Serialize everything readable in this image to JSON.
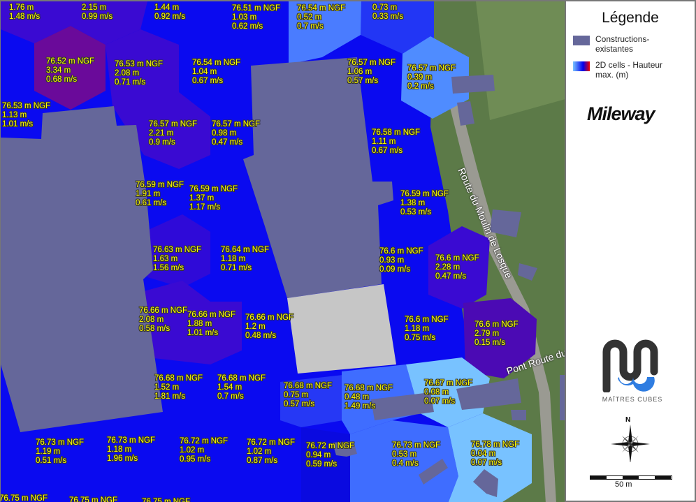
{
  "map": {
    "cells": [
      {
        "wse": null,
        "depth": "1.76 m",
        "velocity": "1.48 m/s"
      },
      {
        "wse": null,
        "depth": "2.15 m",
        "velocity": "0.99 m/s"
      },
      {
        "wse": null,
        "depth": "1.44 m",
        "velocity": "0.92 m/s"
      },
      {
        "wse": "76.51 m NGF",
        "depth": "1.03 m",
        "velocity": "0.62 m/s"
      },
      {
        "wse": "76.54 m NGF",
        "depth": "0.52 m",
        "velocity": "0.7 m/s"
      },
      {
        "wse": null,
        "depth": "0.73 m",
        "velocity": "0.33 m/s"
      },
      {
        "wse": "76.52 m NGF",
        "depth": "3.34 m",
        "velocity": "0.68 m/s"
      },
      {
        "wse": "76.53 m NGF",
        "depth": "2.08 m",
        "velocity": "0.71 m/s"
      },
      {
        "wse": "76.54 m NGF",
        "depth": "1.04 m",
        "velocity": "0.67 m/s"
      },
      {
        "wse": "76.57 m NGF",
        "depth": "1.06 m",
        "velocity": "0.57 m/s"
      },
      {
        "wse": "76.57 m NGF",
        "depth": "0.39 m",
        "velocity": "0.2 m/s"
      },
      {
        "wse": "76.53 m NGF",
        "depth": "1.13 m",
        "velocity": "1.01 m/s"
      },
      {
        "wse": "76.57 m NGF",
        "depth": "2.21 m",
        "velocity": "0.9 m/s"
      },
      {
        "wse": "76.57 m NGF",
        "depth": "0.98 m",
        "velocity": "0.47 m/s"
      },
      {
        "wse": "76.58 m NGF",
        "depth": "1.11 m",
        "velocity": "0.67 m/s"
      },
      {
        "wse": "76.59 m NGF",
        "depth": "1.91 m",
        "velocity": "0.61 m/s"
      },
      {
        "wse": "76.59 m NGF",
        "depth": "1.37 m",
        "velocity": "1.17 m/s"
      },
      {
        "wse": "76.59 m NGF",
        "depth": "1.38 m",
        "velocity": "0.53 m/s"
      },
      {
        "wse": "76.63 m NGF",
        "depth": "1.63 m",
        "velocity": "1.56 m/s"
      },
      {
        "wse": "76.64 m NGF",
        "depth": "1.18 m",
        "velocity": "0.71 m/s"
      },
      {
        "wse": "76.6 m NGF",
        "depth": "0.93 m",
        "velocity": "0.09 m/s"
      },
      {
        "wse": "76.6 m NGF",
        "depth": "2.28 m",
        "velocity": "0.47 m/s"
      },
      {
        "wse": "76.66 m NGF",
        "depth": "2.08 m",
        "velocity": "0.58 m/s"
      },
      {
        "wse": "76.66 m NGF",
        "depth": "1.88 m",
        "velocity": "1.01 m/s"
      },
      {
        "wse": "76.66 m NGF",
        "depth": "1.2 m",
        "velocity": "0.48 m/s"
      },
      {
        "wse": "76.6 m NGF",
        "depth": "1.18 m",
        "velocity": "0.75 m/s"
      },
      {
        "wse": "76.6 m NGF",
        "depth": "2.79 m",
        "velocity": "0.15 m/s"
      },
      {
        "wse": "76.68 m NGF",
        "depth": "1.52 m",
        "velocity": "1.81 m/s"
      },
      {
        "wse": "76.68 m NGF",
        "depth": "1.54 m",
        "velocity": "0.7 m/s"
      },
      {
        "wse": "76.68 m NGF",
        "depth": "0.75 m",
        "velocity": "0.57 m/s"
      },
      {
        "wse": "76.68 m NGF",
        "depth": "0.48 m",
        "velocity": "1.49 m/s"
      },
      {
        "wse": "76.67 m NGF",
        "depth": "0.08 m",
        "velocity": "0.07 m/s"
      },
      {
        "wse": "76.73 m NGF",
        "depth": "1.19 m",
        "velocity": "0.51 m/s"
      },
      {
        "wse": "76.73 m NGF",
        "depth": "1.18 m",
        "velocity": "1.96 m/s"
      },
      {
        "wse": "76.72 m NGF",
        "depth": "1.02 m",
        "velocity": "0.95 m/s"
      },
      {
        "wse": "76.72 m NGF",
        "depth": "1.02 m",
        "velocity": "0.87 m/s"
      },
      {
        "wse": "76.72 m NGF",
        "depth": "0.94 m",
        "velocity": "0.59 m/s"
      },
      {
        "wse": "76.73 m NGF",
        "depth": "0.53 m",
        "velocity": "0.4 m/s"
      },
      {
        "wse": "76.78 m NGF",
        "depth": "0.04 m",
        "velocity": "0.07 m/s"
      },
      {
        "wse": "76.75 m NGF",
        "depth": null,
        "velocity": null
      },
      {
        "wse": "76.75 m NGF",
        "depth": null,
        "velocity": null
      },
      {
        "wse": "76.75 m NGF",
        "depth": null,
        "velocity": null
      }
    ],
    "roads": {
      "main": "Route du Moulin de Losque",
      "bottom": "Pont  Route du"
    },
    "colors": {
      "deep_purple": "#6a0a9a",
      "violet": "#3a0ad2",
      "blue": "#0a0af0",
      "mid_blue": "#3f6dff",
      "light_blue": "#78c2ff",
      "building": "#65679a",
      "building_light": "#c6c6c6"
    }
  },
  "legend": {
    "title": "Légende",
    "items": [
      {
        "label": "Constructions-existantes",
        "swatch": "#65679a"
      },
      {
        "label": "2D cells - Hauteur max. (m)",
        "gradient": [
          "#7ac4ff",
          "#0000ee",
          "#ee0000"
        ]
      }
    ],
    "brand": "Mileway",
    "partner": "MAÎTRES CUBES",
    "north": "N",
    "scale": "50 m"
  }
}
